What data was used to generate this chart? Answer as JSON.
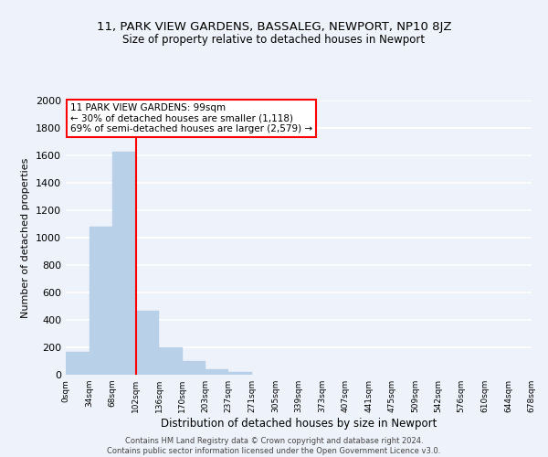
{
  "title_line1": "11, PARK VIEW GARDENS, BASSALEG, NEWPORT, NP10 8JZ",
  "title_line2": "Size of property relative to detached houses in Newport",
  "xlabel": "Distribution of detached houses by size in Newport",
  "ylabel": "Number of detached properties",
  "bin_edges": [
    0,
    34,
    68,
    102,
    136,
    170,
    203,
    237,
    271,
    305,
    339,
    373,
    407,
    441,
    475,
    509,
    542,
    576,
    610,
    644,
    678
  ],
  "bin_counts": [
    170,
    1080,
    1630,
    470,
    200,
    100,
    40,
    20,
    0,
    0,
    0,
    0,
    0,
    0,
    0,
    0,
    0,
    0,
    0,
    0
  ],
  "bar_color": "#b8d0e8",
  "bar_edge_color": "#b8d0e8",
  "vline_x": 102,
  "vline_color": "red",
  "annotation_title": "11 PARK VIEW GARDENS: 99sqm",
  "annotation_line1": "← 30% of detached houses are smaller (1,118)",
  "annotation_line2": "69% of semi-detached houses are larger (2,579) →",
  "annotation_box_color": "white",
  "annotation_box_edge_color": "red",
  "ylim": [
    0,
    2000
  ],
  "yticks": [
    0,
    200,
    400,
    600,
    800,
    1000,
    1200,
    1400,
    1600,
    1800,
    2000
  ],
  "xtick_labels": [
    "0sqm",
    "34sqm",
    "68sqm",
    "102sqm",
    "136sqm",
    "170sqm",
    "203sqm",
    "237sqm",
    "271sqm",
    "305sqm",
    "339sqm",
    "373sqm",
    "407sqm",
    "441sqm",
    "475sqm",
    "509sqm",
    "542sqm",
    "576sqm",
    "610sqm",
    "644sqm",
    "678sqm"
  ],
  "background_color": "#eef2fa",
  "plot_bg_color": "#eef2fa",
  "grid_color": "#ffffff",
  "footer_line1": "Contains HM Land Registry data © Crown copyright and database right 2024.",
  "footer_line2": "Contains public sector information licensed under the Open Government Licence v3.0."
}
